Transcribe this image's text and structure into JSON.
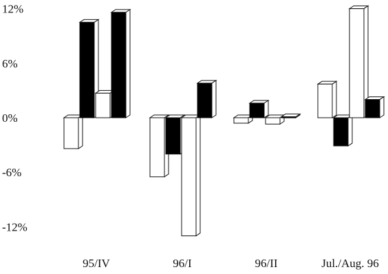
{
  "chart_data": {
    "type": "bar",
    "style": "3d",
    "title": "",
    "xlabel": "",
    "ylabel": "",
    "ylim": [
      -13,
      12.5
    ],
    "y_ticks": [
      12,
      6,
      0,
      -6,
      -12
    ],
    "y_tick_labels": [
      "12%",
      "6%",
      "0%",
      "-6%",
      "-12%"
    ],
    "categories": [
      "95/IV",
      "96/I",
      "96/II",
      "Jul./Aug. 96"
    ],
    "grid": false,
    "legend": "none",
    "series": [
      {
        "fill": "#ffffff",
        "values": [
          -3.4,
          -6.5,
          -0.6,
          3.7
        ]
      },
      {
        "fill": "#000000",
        "values": [
          10.5,
          -4.0,
          1.6,
          -3.1
        ]
      },
      {
        "fill": "#ffffff",
        "values": [
          2.7,
          -13.0,
          -0.7,
          12.0
        ]
      },
      {
        "fill": "#000000",
        "values": [
          11.6,
          3.8,
          0.1,
          2.0
        ]
      }
    ]
  }
}
